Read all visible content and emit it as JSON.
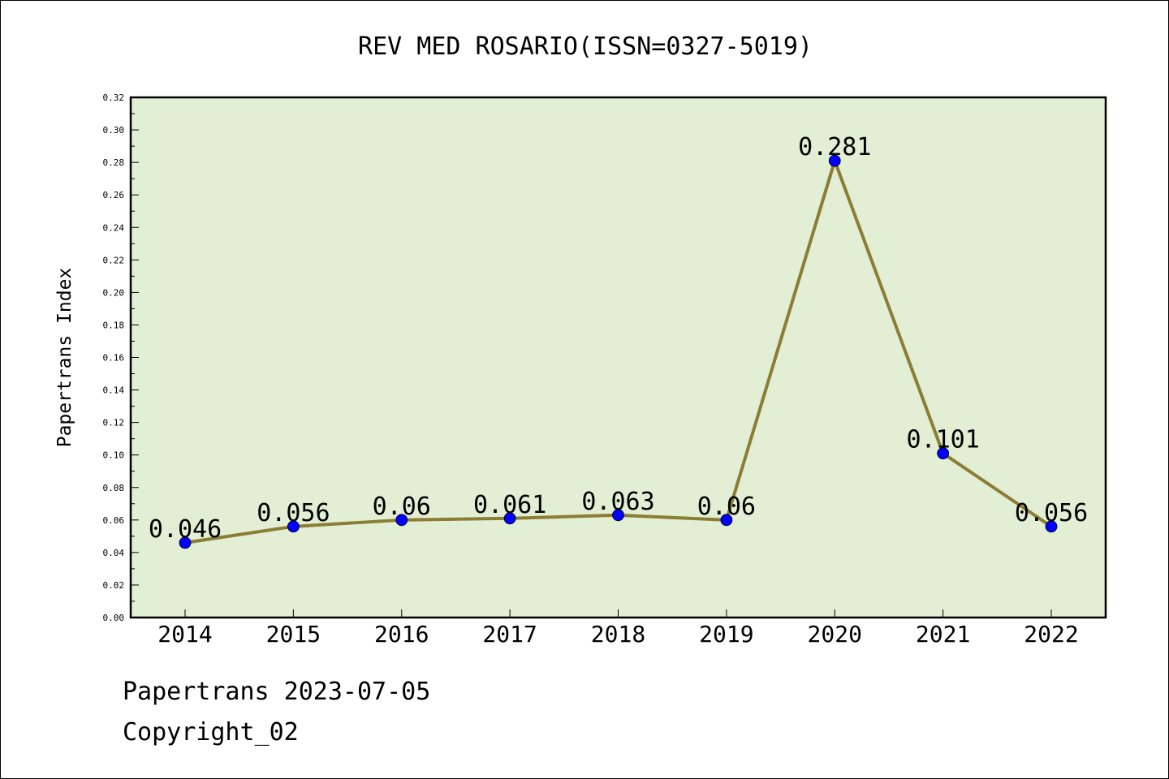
{
  "chart_data": {
    "type": "line",
    "title": "REV MED ROSARIO(ISSN=0327-5019)",
    "xlabel": "",
    "ylabel": "Papertrans Index",
    "x": [
      "2014",
      "2015",
      "2016",
      "2017",
      "2018",
      "2019",
      "2020",
      "2021",
      "2022"
    ],
    "series": [
      {
        "values": [
          0.046,
          0.056,
          0.06,
          0.061,
          0.063,
          0.06,
          0.281,
          0.101,
          0.056
        ],
        "data_labels": [
          "0.046",
          "0.056",
          "0.06",
          "0.061",
          "0.063",
          "0.06",
          "0.281",
          "0.101",
          "0.056"
        ],
        "line_color": "#8b7d34",
        "marker_color": "#0000ff"
      }
    ],
    "ylim": [
      0,
      0.32
    ],
    "yticks": [
      "0.00",
      "0.02",
      "0.04",
      "0.06",
      "0.08",
      "0.10",
      "0.12",
      "0.14",
      "0.16",
      "0.18",
      "0.20",
      "0.22",
      "0.24",
      "0.26",
      "0.28",
      "0.30",
      "0.32"
    ],
    "plot_background": "#e2efd4",
    "grid": false,
    "legend": "none"
  },
  "footer": {
    "date_line": "Papertrans 2023-07-05",
    "copyright_line": "Copyright_02"
  }
}
